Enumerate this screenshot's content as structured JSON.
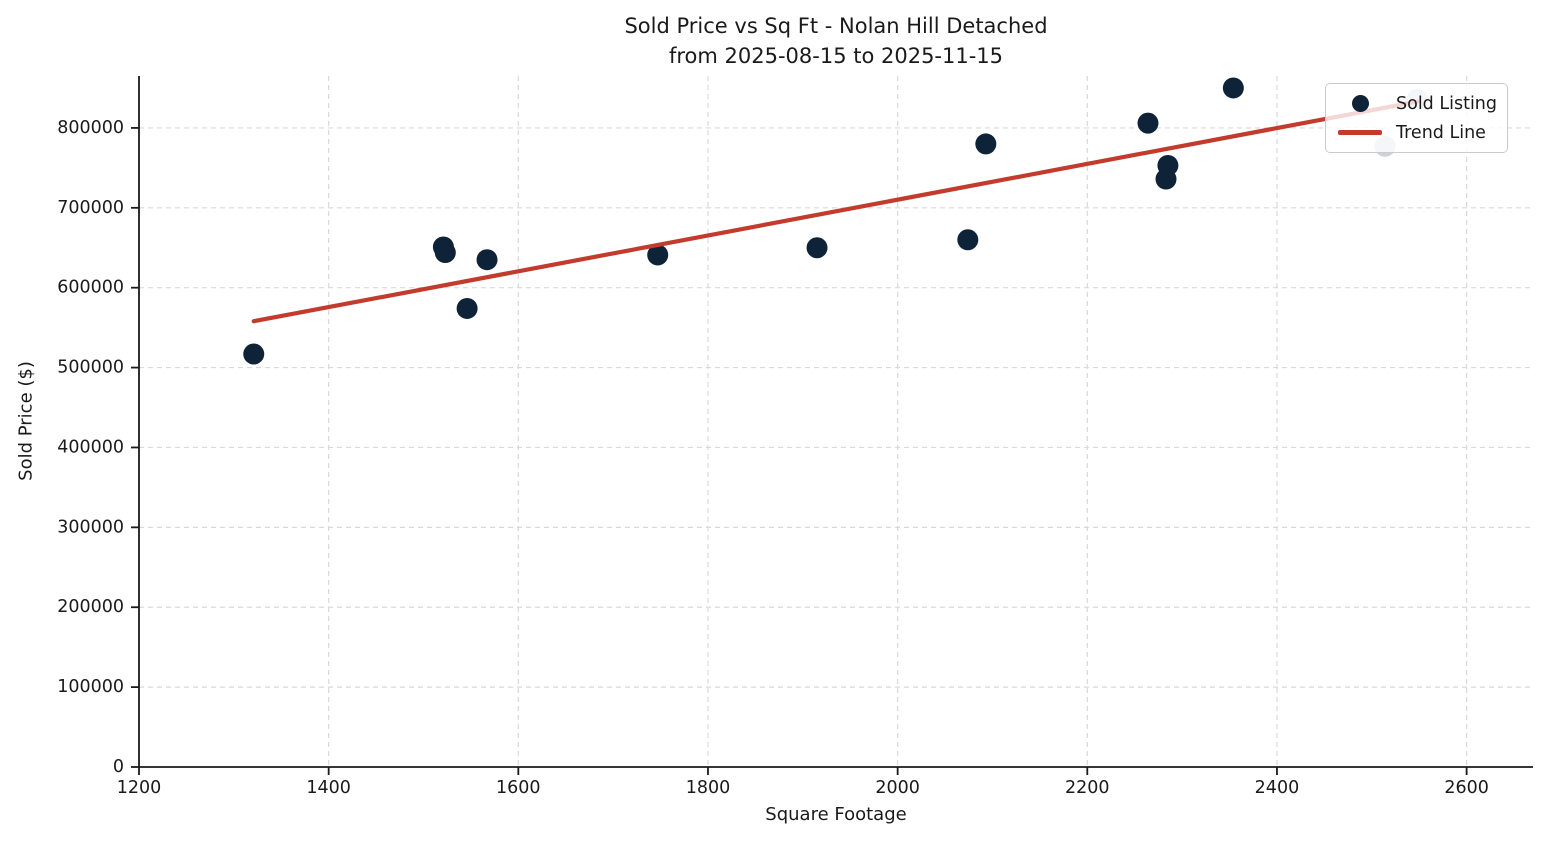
{
  "chart_data": {
    "type": "scatter",
    "title": "Sold Price vs Sq Ft - Nolan Hill Detached",
    "subtitle": "from 2025-08-15 to 2025-11-15",
    "xlabel": "Square Footage",
    "ylabel": "Sold Price ($)",
    "xlim": [
      1200,
      2670
    ],
    "ylim": [
      0,
      865000
    ],
    "xticks": [
      1200,
      1400,
      1600,
      1800,
      2000,
      2200,
      2400,
      2600
    ],
    "yticks": [
      0,
      100000,
      200000,
      300000,
      400000,
      500000,
      600000,
      700000,
      800000
    ],
    "grid": true,
    "grid_style": "dashed",
    "legend": {
      "position": "upper right",
      "items": [
        {
          "label": "Sold Listing",
          "marker": "dot",
          "color": "#0e2337"
        },
        {
          "label": "Trend Line",
          "marker": "line",
          "color": "#c23b2c"
        }
      ]
    },
    "series": [
      {
        "name": "Sold Listing",
        "type": "scatter",
        "color": "#0e2337",
        "points": [
          [
            1321,
            517000
          ],
          [
            1521,
            651000
          ],
          [
            1523,
            644000
          ],
          [
            1546,
            574000
          ],
          [
            1567,
            635000
          ],
          [
            1747,
            641000
          ],
          [
            1915,
            650000
          ],
          [
            2074,
            660000
          ],
          [
            2093,
            780000
          ],
          [
            2264,
            806000
          ],
          [
            2285,
            753000
          ],
          [
            2283,
            736000
          ],
          [
            2354,
            850000
          ]
        ]
      },
      {
        "name": "unlabeled",
        "type": "scatter",
        "color": "#ccd2d9",
        "points": [
          [
            2514,
            777000
          ],
          [
            2548,
            836000
          ]
        ]
      },
      {
        "name": "Trend Line",
        "type": "line",
        "color": "#c23b2c",
        "line_width": 4.2,
        "points": [
          [
            1321,
            558000
          ],
          [
            2548,
            833000
          ]
        ]
      }
    ],
    "colors": {
      "background": "#ffffff",
      "grid": "#d9d9d9",
      "axis": "#1a1a1a",
      "text": "#1a1a1a"
    }
  }
}
